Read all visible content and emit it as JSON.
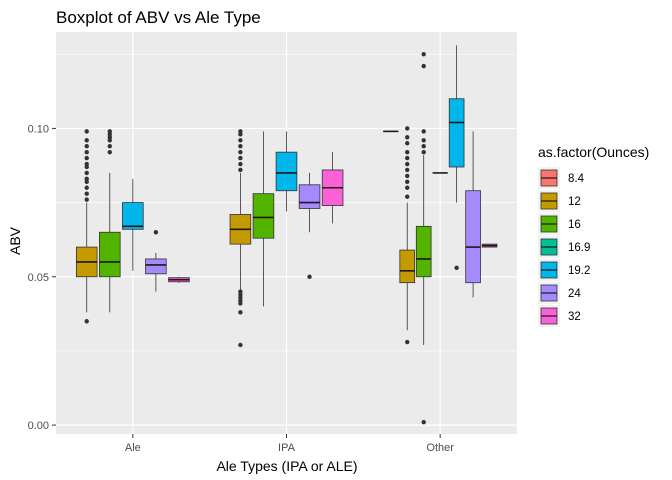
{
  "chart_data": {
    "type": "boxplot",
    "title": "Boxplot of ABV vs Ale Type",
    "xlabel": "Ale Types (IPA or ALE)",
    "ylabel": "ABV",
    "categories": [
      "Ale",
      "IPA",
      "Other"
    ],
    "ylim": [
      -0.003,
      0.1325
    ],
    "yticks": [
      0.0,
      0.05,
      0.1
    ],
    "ytick_labels": [
      "0.00",
      "0.05",
      "0.10"
    ],
    "grid": true,
    "background": "#ebebeb",
    "legend": {
      "title": "as.factor(Ounces)",
      "placement": "right",
      "entries": [
        {
          "label": "8.4",
          "color": "#F8766D"
        },
        {
          "label": "12",
          "color": "#C49A00"
        },
        {
          "label": "16",
          "color": "#53B400"
        },
        {
          "label": "16.9",
          "color": "#00C094"
        },
        {
          "label": "19.2",
          "color": "#00B6EB"
        },
        {
          "label": "24",
          "color": "#A58AFF"
        },
        {
          "label": "32",
          "color": "#FB61D7"
        }
      ]
    },
    "groups": [
      {
        "category": "Ale",
        "boxes": [
          {
            "ounces": "12",
            "min": 0.038,
            "q1": 0.05,
            "median": 0.055,
            "q3": 0.06,
            "max": 0.075,
            "outliers": [
              0.035,
              0.076,
              0.078,
              0.08,
              0.082,
              0.083,
              0.085,
              0.087,
              0.088,
              0.09,
              0.092,
              0.094,
              0.096,
              0.099
            ]
          },
          {
            "ounces": "16",
            "min": 0.038,
            "q1": 0.05,
            "median": 0.055,
            "q3": 0.065,
            "max": 0.085,
            "outliers": [
              0.092,
              0.094,
              0.096,
              0.097,
              0.098,
              0.099
            ]
          },
          {
            "ounces": "19.2",
            "min": 0.052,
            "q1": 0.066,
            "median": 0.067,
            "q3": 0.075,
            "max": 0.083,
            "outliers": []
          },
          {
            "ounces": "24",
            "min": 0.045,
            "q1": 0.051,
            "median": 0.054,
            "q3": 0.056,
            "max": 0.058,
            "outliers": [
              0.065
            ]
          },
          {
            "ounces": "32",
            "min": 0.048,
            "q1": 0.0483,
            "median": 0.049,
            "q3": 0.0497,
            "max": 0.05,
            "outliers": []
          }
        ]
      },
      {
        "category": "IPA",
        "boxes": [
          {
            "ounces": "12",
            "min": 0.045,
            "q1": 0.061,
            "median": 0.066,
            "q3": 0.071,
            "max": 0.085,
            "outliers": [
              0.027,
              0.038,
              0.041,
              0.042,
              0.043,
              0.044,
              0.045,
              0.086,
              0.088,
              0.09,
              0.092,
              0.094,
              0.096,
              0.098,
              0.099
            ]
          },
          {
            "ounces": "16",
            "min": 0.04,
            "q1": 0.063,
            "median": 0.07,
            "q3": 0.078,
            "max": 0.099,
            "outliers": []
          },
          {
            "ounces": "19.2",
            "min": 0.072,
            "q1": 0.079,
            "median": 0.085,
            "q3": 0.092,
            "max": 0.099,
            "outliers": []
          },
          {
            "ounces": "24",
            "min": 0.065,
            "q1": 0.073,
            "median": 0.075,
            "q3": 0.081,
            "max": 0.085,
            "outliers": [
              0.05
            ]
          },
          {
            "ounces": "32",
            "min": 0.068,
            "q1": 0.074,
            "median": 0.08,
            "q3": 0.086,
            "max": 0.092,
            "outliers": []
          }
        ]
      },
      {
        "category": "Other",
        "boxes": [
          {
            "ounces": "8.4",
            "min": 0.099,
            "q1": 0.099,
            "median": 0.099,
            "q3": 0.099,
            "max": 0.099,
            "outliers": []
          },
          {
            "ounces": "12",
            "min": 0.032,
            "q1": 0.048,
            "median": 0.052,
            "q3": 0.059,
            "max": 0.075,
            "outliers": [
              0.028,
              0.077,
              0.08,
              0.082,
              0.084,
              0.086,
              0.088,
              0.09,
              0.092,
              0.095,
              0.097,
              0.1
            ]
          },
          {
            "ounces": "16",
            "min": 0.027,
            "q1": 0.05,
            "median": 0.056,
            "q3": 0.067,
            "max": 0.091,
            "outliers": [
              0.001,
              0.092,
              0.094,
              0.096,
              0.099,
              0.121,
              0.125
            ]
          },
          {
            "ounces": "16.9",
            "min": 0.085,
            "q1": 0.085,
            "median": 0.085,
            "q3": 0.085,
            "max": 0.085,
            "outliers": []
          },
          {
            "ounces": "19.2",
            "min": 0.075,
            "q1": 0.087,
            "median": 0.102,
            "q3": 0.11,
            "max": 0.128,
            "outliers": [
              0.053
            ]
          },
          {
            "ounces": "24",
            "min": 0.043,
            "q1": 0.048,
            "median": 0.06,
            "q3": 0.079,
            "max": 0.099,
            "outliers": []
          },
          {
            "ounces": "32",
            "min": 0.06,
            "q1": 0.06,
            "median": 0.0605,
            "q3": 0.061,
            "max": 0.061,
            "outliers": []
          }
        ]
      }
    ]
  }
}
